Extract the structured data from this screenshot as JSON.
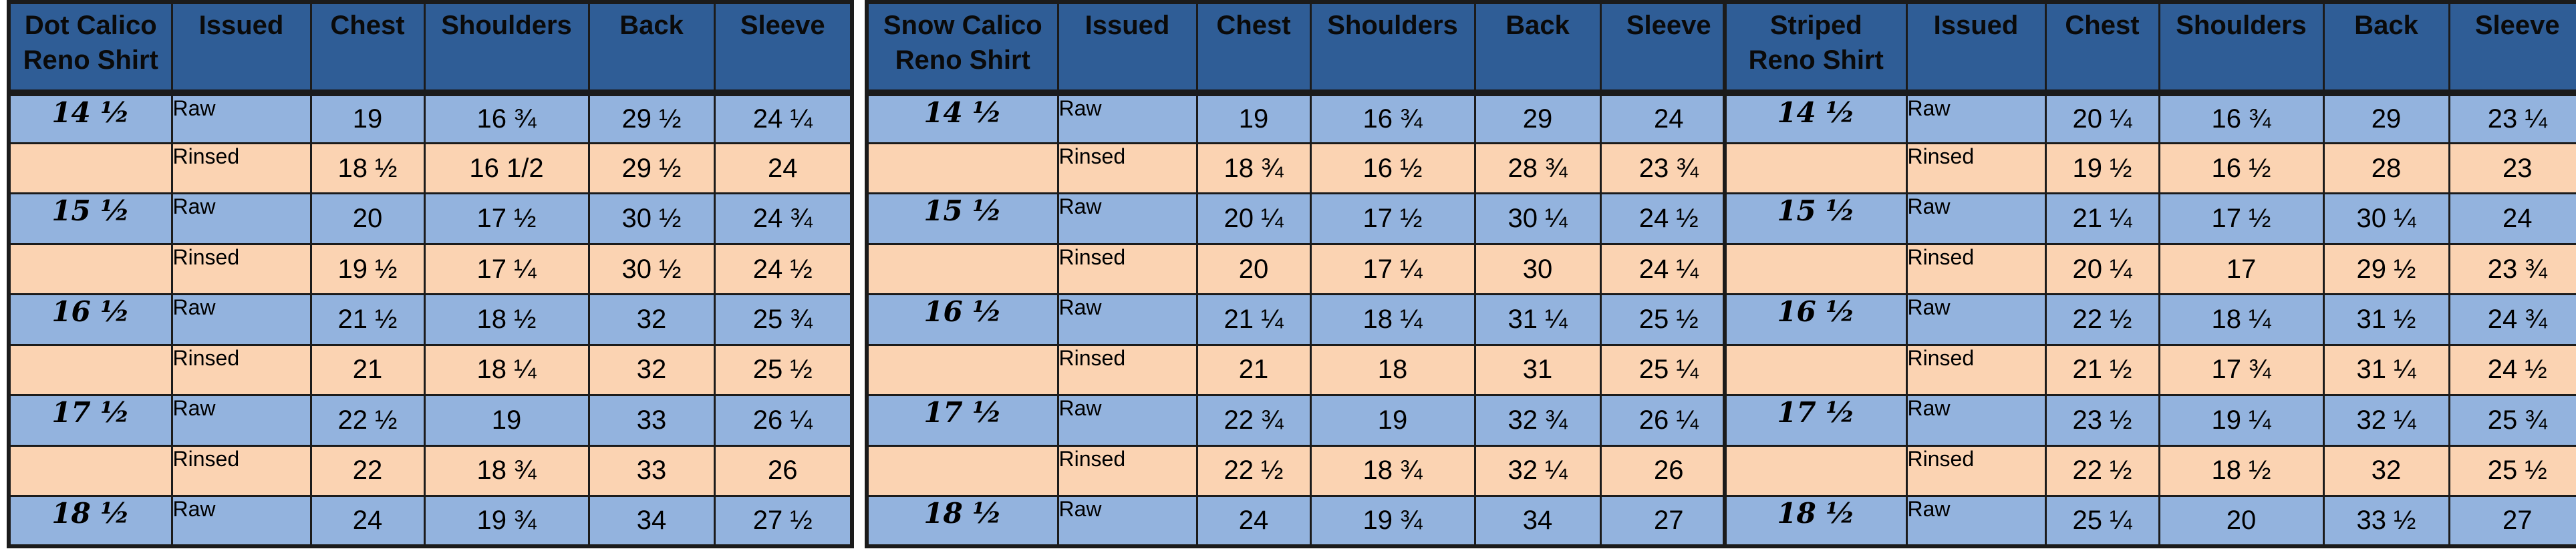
{
  "tables": [
    {
      "headers": [
        "Dot Calico\nReno Shirt",
        "Issued",
        "Chest",
        "Shoulders",
        "Back",
        "Sleeve"
      ],
      "rows": [
        {
          "size": "14 ½",
          "issued": "Raw",
          "chest": "19",
          "shoulders": "16 ¾",
          "back": "29 ½",
          "sleeve": "24 ¼"
        },
        {
          "size": "",
          "issued": "Rinsed",
          "chest": "18 ½",
          "shoulders": "16 1/2",
          "back": "29 ½",
          "sleeve": "24"
        },
        {
          "size": "15 ½",
          "issued": "Raw",
          "chest": "20",
          "shoulders": "17 ½",
          "back": "30 ½",
          "sleeve": "24 ¾"
        },
        {
          "size": "",
          "issued": "Rinsed",
          "chest": "19 ½",
          "shoulders": "17 ¼",
          "back": "30 ½",
          "sleeve": "24 ½"
        },
        {
          "size": "16 ½",
          "issued": "Raw",
          "chest": "21 ½",
          "shoulders": "18 ½",
          "back": "32",
          "sleeve": "25 ¾"
        },
        {
          "size": "",
          "issued": "Rinsed",
          "chest": "21",
          "shoulders": "18 ¼",
          "back": "32",
          "sleeve": "25 ½"
        },
        {
          "size": "17 ½",
          "issued": "Raw",
          "chest": "22 ½",
          "shoulders": "19",
          "back": "33",
          "sleeve": "26 ¼"
        },
        {
          "size": "",
          "issued": "Rinsed",
          "chest": "22",
          "shoulders": "18 ¾",
          "back": "33",
          "sleeve": "26"
        },
        {
          "size": "18 ½",
          "issued": "Raw",
          "chest": "24",
          "shoulders": "19 ¾",
          "back": "34",
          "sleeve": "27 ½"
        }
      ]
    },
    {
      "headers": [
        "Snow Calico\nReno Shirt",
        "Issued",
        "Chest",
        "Shoulders",
        "Back",
        "Sleeve"
      ],
      "rows": [
        {
          "size": "14 ½",
          "issued": "Raw",
          "chest": "19",
          "shoulders": "16 ¾",
          "back": "29",
          "sleeve": "24"
        },
        {
          "size": "",
          "issued": "Rinsed",
          "chest": "18 ¾",
          "shoulders": "16 ½",
          "back": "28 ¾",
          "sleeve": "23 ¾"
        },
        {
          "size": "15 ½",
          "issued": "Raw",
          "chest": "20 ¼",
          "shoulders": "17 ½",
          "back": "30 ¼",
          "sleeve": "24 ½"
        },
        {
          "size": "",
          "issued": "Rinsed",
          "chest": "20",
          "shoulders": "17 ¼",
          "back": "30",
          "sleeve": "24 ¼"
        },
        {
          "size": "16 ½",
          "issued": "Raw",
          "chest": "21 ¼",
          "shoulders": "18 ¼",
          "back": "31 ¼",
          "sleeve": "25 ½"
        },
        {
          "size": "",
          "issued": "Rinsed",
          "chest": "21",
          "shoulders": "18",
          "back": "31",
          "sleeve": "25 ¼"
        },
        {
          "size": "17 ½",
          "issued": "Raw",
          "chest": "22 ¾",
          "shoulders": "19",
          "back": "32 ¾",
          "sleeve": "26 ¼"
        },
        {
          "size": "",
          "issued": "Rinsed",
          "chest": "22 ½",
          "shoulders": "18 ¾",
          "back": "32 ¼",
          "sleeve": "26"
        },
        {
          "size": "18 ½",
          "issued": "Raw",
          "chest": "24",
          "shoulders": "19 ¾",
          "back": "34",
          "sleeve": "27"
        }
      ]
    },
    {
      "headers": [
        "Striped\nReno Shirt",
        "Issued",
        "Chest",
        "Shoulders",
        "Back",
        "Sleeve"
      ],
      "rows": [
        {
          "size": "14 ½",
          "issued": "Raw",
          "chest": "20 ¼",
          "shoulders": "16 ¾",
          "back": "29",
          "sleeve": "23 ¼"
        },
        {
          "size": "",
          "issued": "Rinsed",
          "chest": "19 ½",
          "shoulders": "16 ½",
          "back": "28",
          "sleeve": "23"
        },
        {
          "size": "15 ½",
          "issued": "Raw",
          "chest": "21 ¼",
          "shoulders": "17 ½",
          "back": "30 ¼",
          "sleeve": "24"
        },
        {
          "size": "",
          "issued": "Rinsed",
          "chest": "20 ¼",
          "shoulders": "17",
          "back": "29 ½",
          "sleeve": "23 ¾"
        },
        {
          "size": "16 ½",
          "issued": "Raw",
          "chest": "22 ½",
          "shoulders": "18 ¼",
          "back": "31 ½",
          "sleeve": "24 ¾"
        },
        {
          "size": "",
          "issued": "Rinsed",
          "chest": "21 ½",
          "shoulders": "17 ¾",
          "back": "31 ¼",
          "sleeve": "24 ½"
        },
        {
          "size": "17 ½",
          "issued": "Raw",
          "chest": "23 ½",
          "shoulders": "19 ¼",
          "back": "32 ¼",
          "sleeve": "25 ¾"
        },
        {
          "size": "",
          "issued": "Rinsed",
          "chest": "22 ½",
          "shoulders": "18 ½",
          "back": "32",
          "sleeve": "25 ½"
        },
        {
          "size": "18 ½",
          "issued": "Raw",
          "chest": "25 ¼",
          "shoulders": "20",
          "back": "33 ½",
          "sleeve": "27"
        }
      ]
    }
  ],
  "colors": {
    "header_bg": "#2f5d96",
    "raw_row_bg": "#93b3de",
    "rinsed_row_bg": "#fbd3b2",
    "border": "#1b1b1b"
  }
}
